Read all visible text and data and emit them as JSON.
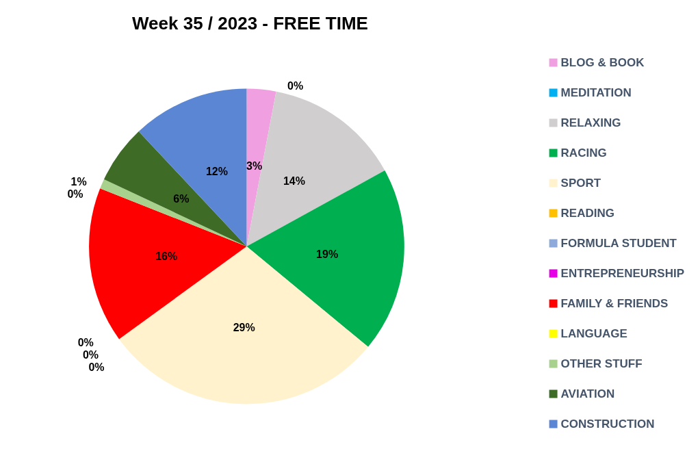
{
  "chart_data": {
    "type": "pie",
    "title": "Week 35 / 2023 - FREE TIME",
    "categories": [
      "BLOG & BOOK",
      "MEDITATION",
      "RELAXING",
      "RACING",
      "SPORT",
      "READING",
      "FORMULA STUDENT",
      "ENTREPRENEURSHIP",
      "FAMILY & FRIENDS",
      "LANGUAGE",
      "OTHER STUFF",
      "AVIATION",
      "CONSTRUCTION"
    ],
    "values": [
      3,
      0,
      14,
      19,
      29,
      0,
      0,
      0,
      16,
      0,
      1,
      6,
      12
    ],
    "colors": [
      "#f0a0e0",
      "#00b0f0",
      "#d0cece",
      "#00b050",
      "#fff2cc",
      "#ffc000",
      "#8eaadb",
      "#e600e6",
      "#ff0000",
      "#ffff00",
      "#a9d18e",
      "#3e6b26",
      "#5b86d4"
    ],
    "value_labels": [
      "3%",
      "0%",
      "14%",
      "19%",
      "29%",
      "0%",
      "0%",
      "0%",
      "16%",
      "0%",
      "1%",
      "6%",
      "12%"
    ],
    "legend": "right"
  }
}
